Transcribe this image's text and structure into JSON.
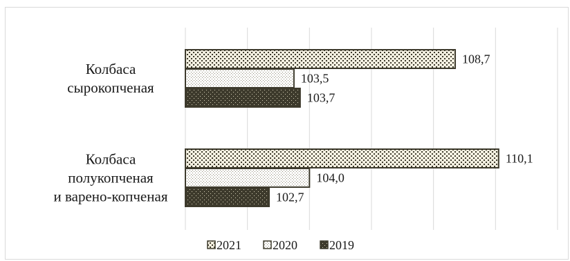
{
  "chart_data": {
    "type": "bar",
    "orientation": "horizontal",
    "categories": [
      [
        "Колбаса",
        "сырокопченая"
      ],
      [
        "Колбаса",
        "полукопченая",
        "и варено-копченая"
      ]
    ],
    "series": [
      {
        "name": "2021",
        "values": [
          108.7,
          110.1
        ],
        "labels": [
          "108,7",
          "110,1"
        ],
        "pattern": "dots-dense"
      },
      {
        "name": "2020",
        "values": [
          103.5,
          104.0
        ],
        "labels": [
          "103,5",
          "104,0"
        ],
        "pattern": "dots-fine"
      },
      {
        "name": "2019",
        "values": [
          103.7,
          102.7
        ],
        "labels": [
          "103,7",
          "102,7"
        ],
        "pattern": "dots-dark"
      }
    ],
    "xlim": [
      100,
      112
    ],
    "grid": true,
    "legend_position": "bottom",
    "colors": {
      "border": "#3d3a2c",
      "dark_fill": "#3d3a2c",
      "grid": "#d9d9d9"
    }
  }
}
